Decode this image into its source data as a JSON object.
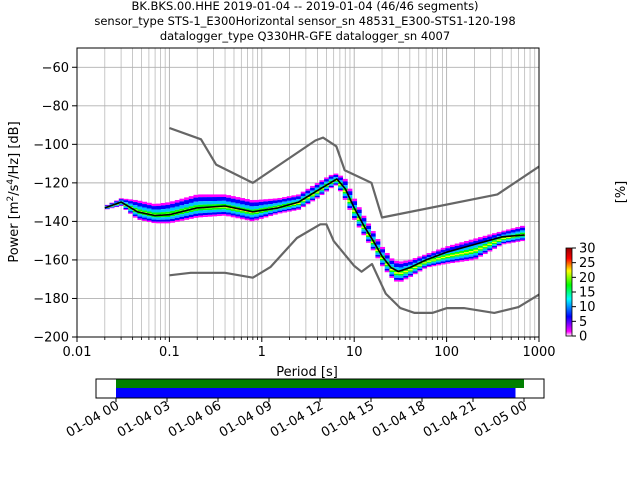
{
  "title_lines": [
    "BK.BKS.00.HHE   2019-01-04 -- 2019-01-04  (46/46 segments)",
    "sensor_type STS-1_E300Horizontal sensor_sn 48531_E300-STS1-120-198",
    "datalogger_type Q330HR-GFE datalogger_sn 4007"
  ],
  "chart_data": [
    {
      "type": "heatmap",
      "xlabel": "Period [s]",
      "ylabel_parts": {
        "pre": "Power [m",
        "sup1": "2",
        "mid": "/s",
        "sup2": "4",
        "post": "/Hz] [dB]"
      },
      "x_scale": "log",
      "xlim": [
        0.01,
        1000
      ],
      "ylim": [
        -200,
        -50
      ],
      "x_ticks": [
        0.01,
        0.1,
        1,
        10,
        100,
        1000
      ],
      "x_tick_labels": [
        "0.01",
        "0.1",
        "1",
        "10",
        "100",
        "1000"
      ],
      "y_ticks": [
        -200,
        -180,
        -160,
        -140,
        -120,
        -100,
        -80,
        -60
      ],
      "y_tick_labels": [
        "−200",
        "−180",
        "−160",
        "−140",
        "−120",
        "−100",
        "−80",
        "−60"
      ],
      "grid": true,
      "colorbar": {
        "label": "[%]",
        "range": [
          0,
          30
        ],
        "ticks": [
          0,
          5,
          10,
          15,
          20,
          25,
          30
        ],
        "tick_labels": [
          "0",
          "5",
          "10",
          "15",
          "20",
          "25",
          "30"
        ],
        "colormap": "pqlx"
      },
      "series": [
        {
          "kind": "reference-model",
          "color": "#666666",
          "x": [
            0.1,
            0.22,
            0.32,
            0.8,
            3.8,
            4.6,
            6.4,
            7.9,
            15.4,
            20,
            354.8,
            1000
          ],
          "y": [
            -91.5,
            -97.4,
            -110.5,
            -120,
            -98,
            -96.5,
            -101,
            -113.5,
            -120,
            -138,
            -126,
            -111.5
          ]
        },
        {
          "kind": "reference-model",
          "color": "#666666",
          "x": [
            0.1,
            0.17,
            0.4,
            0.8,
            1.24,
            2.4,
            4.3,
            5,
            6,
            10,
            12,
            15.6,
            21.9,
            31.6,
            45,
            70,
            101,
            154,
            328,
            600,
            1000
          ],
          "y": [
            -168,
            -166.7,
            -166.7,
            -169.2,
            -163.7,
            -148.6,
            -141.5,
            -141.5,
            -150.2,
            -163.1,
            -166.1,
            -162.1,
            -177.5,
            -185,
            -187.5,
            -187.5,
            -185,
            -185,
            -187.5,
            -184.5,
            -178
          ]
        },
        {
          "kind": "mode",
          "color": "#000000",
          "x": [
            0.02,
            0.03,
            0.045,
            0.07,
            0.1,
            0.2,
            0.4,
            0.8,
            1.5,
            2.5,
            4,
            5.5,
            6.5,
            8,
            10,
            13,
            16,
            20,
            25,
            30,
            40,
            60,
            100,
            200,
            400,
            700
          ],
          "y": [
            -133,
            -130,
            -135,
            -137,
            -136.5,
            -133,
            -132,
            -135,
            -133,
            -130,
            -124,
            -120,
            -118,
            -123,
            -133,
            -143,
            -150,
            -158,
            -164,
            -166,
            -164,
            -160,
            -156,
            -152,
            -148,
            -147
          ]
        }
      ],
      "density_ranges": [
        {
          "x": [
            0.02,
            0.03,
            0.045,
            0.07,
            0.1,
            0.2,
            0.4,
            0.8,
            1.5,
            2.5,
            4,
            5.5,
            6.5,
            8,
            10,
            13,
            16,
            20,
            25,
            30,
            40,
            60,
            100,
            200,
            400,
            700
          ],
          "high": [
            -132,
            -128,
            -129,
            -131,
            -130,
            -126,
            -126,
            -129,
            -128,
            -126,
            -120,
            -116,
            -115,
            -118,
            -128,
            -138,
            -145,
            -153,
            -159,
            -161,
            -160,
            -157,
            -153,
            -149,
            -145,
            -142
          ],
          "low": [
            -134,
            -132,
            -139,
            -141,
            -141,
            -138,
            -137,
            -140,
            -136,
            -134,
            -128,
            -123,
            -121,
            -129,
            -139,
            -148,
            -155,
            -163,
            -169,
            -172,
            -169,
            -164,
            -162,
            -160,
            -152,
            -150
          ]
        }
      ]
    },
    {
      "type": "timeline",
      "x_tick_labels": [
        "01-04 00",
        "01-04 03",
        "01-04 06",
        "01-04 09",
        "01-04 12",
        "01-04 15",
        "01-04 18",
        "01-04 21",
        "01-05 00"
      ],
      "bars": [
        {
          "color": "#008000",
          "start_hour": 0,
          "end_hour": 24.0
        },
        {
          "color": "#0000ff",
          "start_hour": 0,
          "end_hour": 23.5
        }
      ]
    }
  ]
}
